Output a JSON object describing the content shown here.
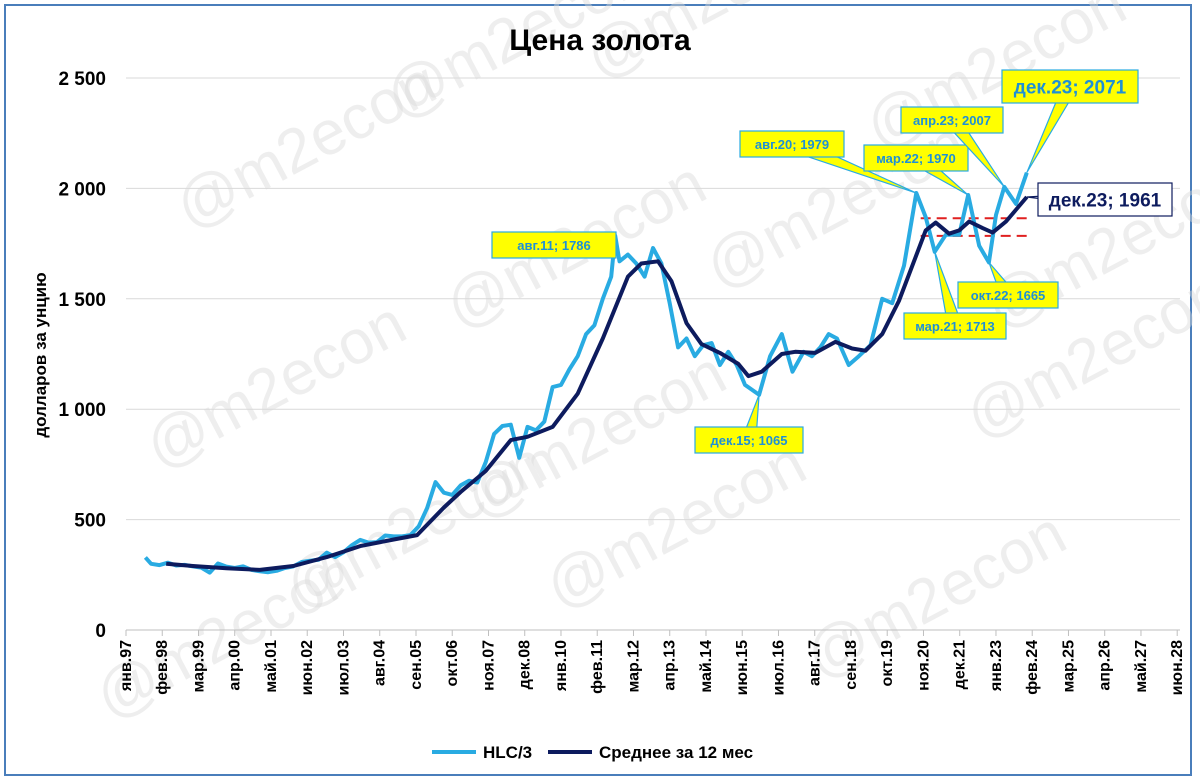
{
  "watermark": "@m2econ",
  "chart_data": {
    "type": "line",
    "title": "Цена золота",
    "ylabel": "долларов за унцию",
    "xlabel": "",
    "ylim": [
      0,
      2500
    ],
    "yticks": [
      "0",
      "500",
      "1 000",
      "1 500",
      "2 000",
      "2 500"
    ],
    "ytick_values": [
      0,
      500,
      1000,
      1500,
      2000,
      2500
    ],
    "grid": true,
    "legend_position": "bottom",
    "x_tick_labels": [
      "янв.97",
      "фев.98",
      "мар.99",
      "апр.00",
      "май.01",
      "июн.02",
      "июл.03",
      "авг.04",
      "сен.05",
      "окт.06",
      "ноя.07",
      "дек.08",
      "янв.10",
      "фев.11",
      "мар.12",
      "апр.13",
      "май.14",
      "июн.15",
      "июл.16",
      "авг.17",
      "сен.18",
      "окт.19",
      "ноя.20",
      "дек.21",
      "янв.23",
      "фев.24",
      "мар.25",
      "апр.26",
      "май.27",
      "июн.28"
    ],
    "x_range_years": [
      1997.0,
      2028.5
    ],
    "series": [
      {
        "name": "HLC/3",
        "color": "#29abe2",
        "points": [
          [
            1997.58,
            329
          ],
          [
            1997.75,
            300
          ],
          [
            1998.0,
            294
          ],
          [
            1998.25,
            305
          ],
          [
            1998.5,
            292
          ],
          [
            1998.75,
            295
          ],
          [
            1999.0,
            288
          ],
          [
            1999.25,
            282
          ],
          [
            1999.5,
            260
          ],
          [
            1999.75,
            301
          ],
          [
            2000.0,
            287
          ],
          [
            2000.25,
            281
          ],
          [
            2000.5,
            288
          ],
          [
            2000.75,
            272
          ],
          [
            2001.0,
            266
          ],
          [
            2001.25,
            262
          ],
          [
            2001.5,
            268
          ],
          [
            2001.75,
            281
          ],
          [
            2002.0,
            288
          ],
          [
            2002.25,
            308
          ],
          [
            2002.5,
            314
          ],
          [
            2002.75,
            318
          ],
          [
            2003.0,
            350
          ],
          [
            2003.25,
            330
          ],
          [
            2003.5,
            352
          ],
          [
            2003.75,
            384
          ],
          [
            2004.0,
            408
          ],
          [
            2004.25,
            396
          ],
          [
            2004.5,
            398
          ],
          [
            2004.75,
            428
          ],
          [
            2005.0,
            424
          ],
          [
            2005.25,
            424
          ],
          [
            2005.5,
            430
          ],
          [
            2005.75,
            470
          ],
          [
            2006.0,
            552
          ],
          [
            2006.25,
            670
          ],
          [
            2006.5,
            622
          ],
          [
            2006.75,
            612
          ],
          [
            2007.0,
            655
          ],
          [
            2007.25,
            676
          ],
          [
            2007.5,
            668
          ],
          [
            2007.75,
            760
          ],
          [
            2008.0,
            888
          ],
          [
            2008.25,
            924
          ],
          [
            2008.5,
            930
          ],
          [
            2008.75,
            780
          ],
          [
            2009.0,
            920
          ],
          [
            2009.25,
            904
          ],
          [
            2009.5,
            944
          ],
          [
            2009.75,
            1100
          ],
          [
            2010.0,
            1110
          ],
          [
            2010.25,
            1180
          ],
          [
            2010.5,
            1240
          ],
          [
            2010.75,
            1340
          ],
          [
            2011.0,
            1380
          ],
          [
            2011.25,
            1500
          ],
          [
            2011.5,
            1600
          ],
          [
            2011.62,
            1786
          ],
          [
            2011.75,
            1670
          ],
          [
            2012.0,
            1700
          ],
          [
            2012.25,
            1660
          ],
          [
            2012.5,
            1600
          ],
          [
            2012.75,
            1730
          ],
          [
            2013.0,
            1660
          ],
          [
            2013.25,
            1480
          ],
          [
            2013.5,
            1280
          ],
          [
            2013.75,
            1320
          ],
          [
            2014.0,
            1240
          ],
          [
            2014.25,
            1290
          ],
          [
            2014.5,
            1300
          ],
          [
            2014.75,
            1200
          ],
          [
            2015.0,
            1260
          ],
          [
            2015.25,
            1200
          ],
          [
            2015.5,
            1110
          ],
          [
            2015.92,
            1065
          ],
          [
            2016.25,
            1240
          ],
          [
            2016.6,
            1340
          ],
          [
            2016.92,
            1170
          ],
          [
            2017.25,
            1260
          ],
          [
            2017.5,
            1240
          ],
          [
            2017.75,
            1280
          ],
          [
            2018.0,
            1340
          ],
          [
            2018.25,
            1320
          ],
          [
            2018.6,
            1200
          ],
          [
            2018.9,
            1240
          ],
          [
            2019.25,
            1290
          ],
          [
            2019.6,
            1500
          ],
          [
            2019.9,
            1480
          ],
          [
            2020.25,
            1650
          ],
          [
            2020.62,
            1979
          ],
          [
            2020.9,
            1870
          ],
          [
            2021.17,
            1713
          ],
          [
            2021.5,
            1790
          ],
          [
            2021.9,
            1790
          ],
          [
            2022.17,
            1970
          ],
          [
            2022.5,
            1740
          ],
          [
            2022.79,
            1665
          ],
          [
            2023.0,
            1880
          ],
          [
            2023.25,
            2007
          ],
          [
            2023.6,
            1930
          ],
          [
            2023.92,
            2071
          ]
        ]
      },
      {
        "name": "Среднее за 12 мес",
        "color": "#0d1b5e",
        "points": [
          [
            1998.2,
            300
          ],
          [
            1999.0,
            290
          ],
          [
            2000.0,
            280
          ],
          [
            2001.0,
            272
          ],
          [
            2002.0,
            290
          ],
          [
            2003.0,
            330
          ],
          [
            2004.0,
            380
          ],
          [
            2005.0,
            410
          ],
          [
            2005.7,
            430
          ],
          [
            2006.5,
            555
          ],
          [
            2007.0,
            625
          ],
          [
            2007.75,
            720
          ],
          [
            2008.5,
            860
          ],
          [
            2009.0,
            875
          ],
          [
            2009.75,
            920
          ],
          [
            2010.5,
            1070
          ],
          [
            2011.25,
            1320
          ],
          [
            2012.0,
            1600
          ],
          [
            2012.4,
            1660
          ],
          [
            2012.9,
            1670
          ],
          [
            2013.3,
            1580
          ],
          [
            2013.75,
            1390
          ],
          [
            2014.2,
            1295
          ],
          [
            2014.75,
            1255
          ],
          [
            2015.3,
            1205
          ],
          [
            2015.6,
            1150
          ],
          [
            2016.0,
            1170
          ],
          [
            2016.6,
            1250
          ],
          [
            2017.0,
            1260
          ],
          [
            2017.6,
            1255
          ],
          [
            2018.2,
            1305
          ],
          [
            2018.7,
            1275
          ],
          [
            2019.1,
            1265
          ],
          [
            2019.6,
            1340
          ],
          [
            2020.1,
            1490
          ],
          [
            2020.6,
            1690
          ],
          [
            2020.9,
            1810
          ],
          [
            2021.2,
            1845
          ],
          [
            2021.6,
            1795
          ],
          [
            2021.9,
            1810
          ],
          [
            2022.2,
            1850
          ],
          [
            2022.6,
            1820
          ],
          [
            2022.9,
            1800
          ],
          [
            2023.3,
            1850
          ],
          [
            2023.92,
            1961
          ]
        ]
      }
    ],
    "annotations": [
      {
        "text": "авг.11; 1786",
        "x": 2011.62,
        "y": 1786,
        "style": "yellow"
      },
      {
        "text": "дек.15; 1065",
        "x": 2015.92,
        "y": 1065,
        "style": "yellow"
      },
      {
        "text": "авг.20; 1979",
        "x": 2020.62,
        "y": 1979,
        "style": "yellow"
      },
      {
        "text": "мар.21; 1713",
        "x": 2021.17,
        "y": 1713,
        "style": "yellow"
      },
      {
        "text": "мар.22; 1970",
        "x": 2022.17,
        "y": 1970,
        "style": "yellow"
      },
      {
        "text": "апр.23; 2007",
        "x": 2023.25,
        "y": 2007,
        "style": "yellow"
      },
      {
        "text": "окт.22; 1665",
        "x": 2022.79,
        "y": 1665,
        "style": "yellow"
      },
      {
        "text": "дек.23; 2071",
        "x": 2023.92,
        "y": 2071,
        "style": "yellow-big"
      },
      {
        "text": "дек.23; 1961",
        "x": 2023.92,
        "y": 1961,
        "style": "white-big"
      }
    ],
    "reference_lines": [
      {
        "y": 1865,
        "x_from": 2020.75,
        "x_to": 2024.0,
        "color": "#e02020",
        "style": "dashed"
      },
      {
        "y": 1785,
        "x_from": 2020.75,
        "x_to": 2024.0,
        "color": "#e02020",
        "style": "dashed"
      }
    ]
  }
}
